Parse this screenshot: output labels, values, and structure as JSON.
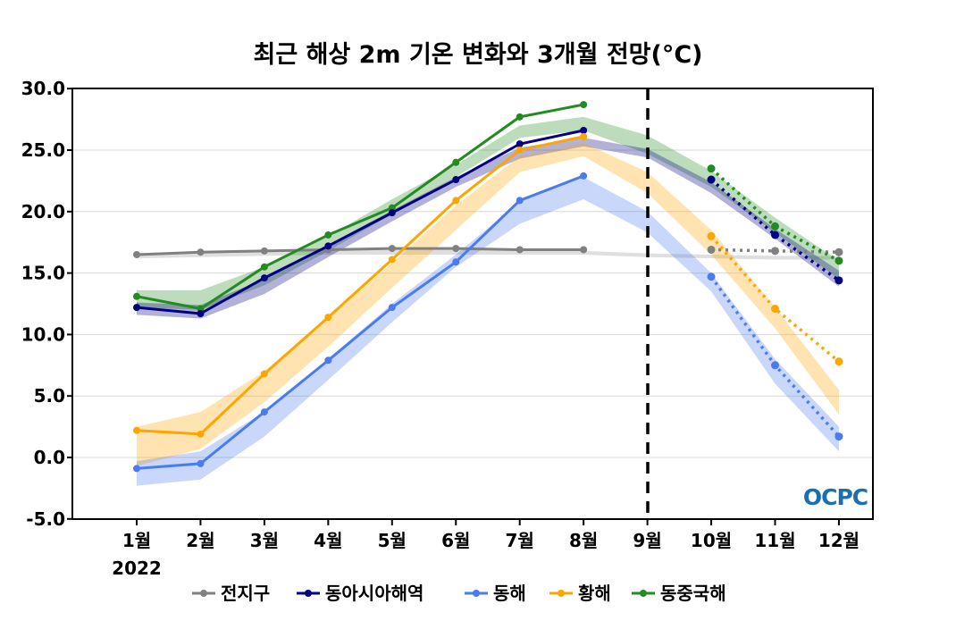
{
  "chart_data": {
    "type": "line",
    "title": "최근 해상 2m 기온 변화와 3개월 전망(°C)",
    "xlabel": "",
    "ylabel": "",
    "categories": [
      "1월",
      "2월",
      "3월",
      "4월",
      "5월",
      "6월",
      "7월",
      "8월",
      "9월",
      "10월",
      "11월",
      "12월"
    ],
    "year_label": "2022",
    "ylim": [
      -5,
      30
    ],
    "yticks": [
      "-5.0",
      "0.0",
      "5.0",
      "10.0",
      "15.0",
      "20.0",
      "25.0",
      "30.0"
    ],
    "grid": "horizontal",
    "divider_month": "9월",
    "legend_position": "bottom",
    "logo": "OCPC",
    "series": [
      {
        "name": "전지구",
        "color": "#808080",
        "observed": [
          16.5,
          16.7,
          16.8,
          16.9,
          17.0,
          17.0,
          16.9,
          16.9
        ],
        "forecast": [
          16.9,
          16.8,
          16.7
        ],
        "band_low": [
          16.2,
          16.3,
          16.4,
          16.5,
          16.5,
          16.5,
          16.5,
          16.5,
          16.3,
          16.2,
          16.1,
          16.1
        ],
        "band_high": [
          16.6,
          16.7,
          16.8,
          16.8,
          16.9,
          16.9,
          16.9,
          16.8,
          16.6,
          16.5,
          16.4,
          16.4
        ]
      },
      {
        "name": "동아시아해역",
        "color": "#000080",
        "observed": [
          12.2,
          11.7,
          14.6,
          17.2,
          19.9,
          22.6,
          25.5,
          26.6
        ],
        "forecast": [
          22.6,
          18.1,
          14.4
        ],
        "band_low": [
          11.6,
          11.3,
          13.3,
          16.3,
          19.2,
          22.0,
          24.3,
          25.3,
          24.4,
          21.5,
          17.8,
          13.9
        ],
        "band_high": [
          12.6,
          12.4,
          14.5,
          17.3,
          20.1,
          22.8,
          25.2,
          26.0,
          25.1,
          22.4,
          18.6,
          15.2
        ]
      },
      {
        "name": "동해",
        "color": "#4a7cf0",
        "observed": [
          -0.9,
          -0.5,
          3.7,
          7.9,
          12.2,
          15.9,
          20.9,
          22.9
        ],
        "forecast": [
          14.7,
          7.5,
          1.7
        ],
        "band_low": [
          -2.3,
          -1.8,
          1.7,
          6.3,
          11.0,
          15.5,
          19.0,
          21.0,
          18.3,
          13.5,
          6.0,
          0.5
        ],
        "band_high": [
          -0.3,
          0.5,
          3.7,
          8.0,
          12.5,
          16.5,
          20.8,
          22.8,
          20.0,
          15.0,
          8.0,
          2.5
        ]
      },
      {
        "name": "황해",
        "color": "#ffa500",
        "observed": [
          2.2,
          1.9,
          6.8,
          11.4,
          16.1,
          20.9,
          25.0,
          26.1
        ],
        "forecast": [
          18.0,
          12.1,
          7.8
        ],
        "band_low": [
          -0.7,
          0.7,
          4.5,
          9.0,
          13.8,
          18.5,
          23.2,
          24.5,
          21.5,
          16.5,
          10.5,
          3.5
        ],
        "band_high": [
          2.5,
          3.7,
          7.0,
          11.5,
          15.8,
          20.5,
          24.5,
          25.6,
          23.2,
          18.5,
          12.2,
          5.5
        ]
      },
      {
        "name": "동중국해",
        "color": "#228b22",
        "observed": [
          13.1,
          12.1,
          15.5,
          18.1,
          20.3,
          24.0,
          27.7,
          28.7
        ],
        "forecast": [
          23.5,
          18.8,
          16.0
        ],
        "band_low": [
          12.2,
          12.0,
          14.0,
          16.8,
          19.8,
          22.8,
          26.0,
          26.6,
          24.7,
          22.0,
          18.3,
          14.5
        ],
        "band_high": [
          13.6,
          13.6,
          15.5,
          18.0,
          21.0,
          23.8,
          27.0,
          27.7,
          26.2,
          23.3,
          19.5,
          16.0
        ]
      }
    ]
  }
}
